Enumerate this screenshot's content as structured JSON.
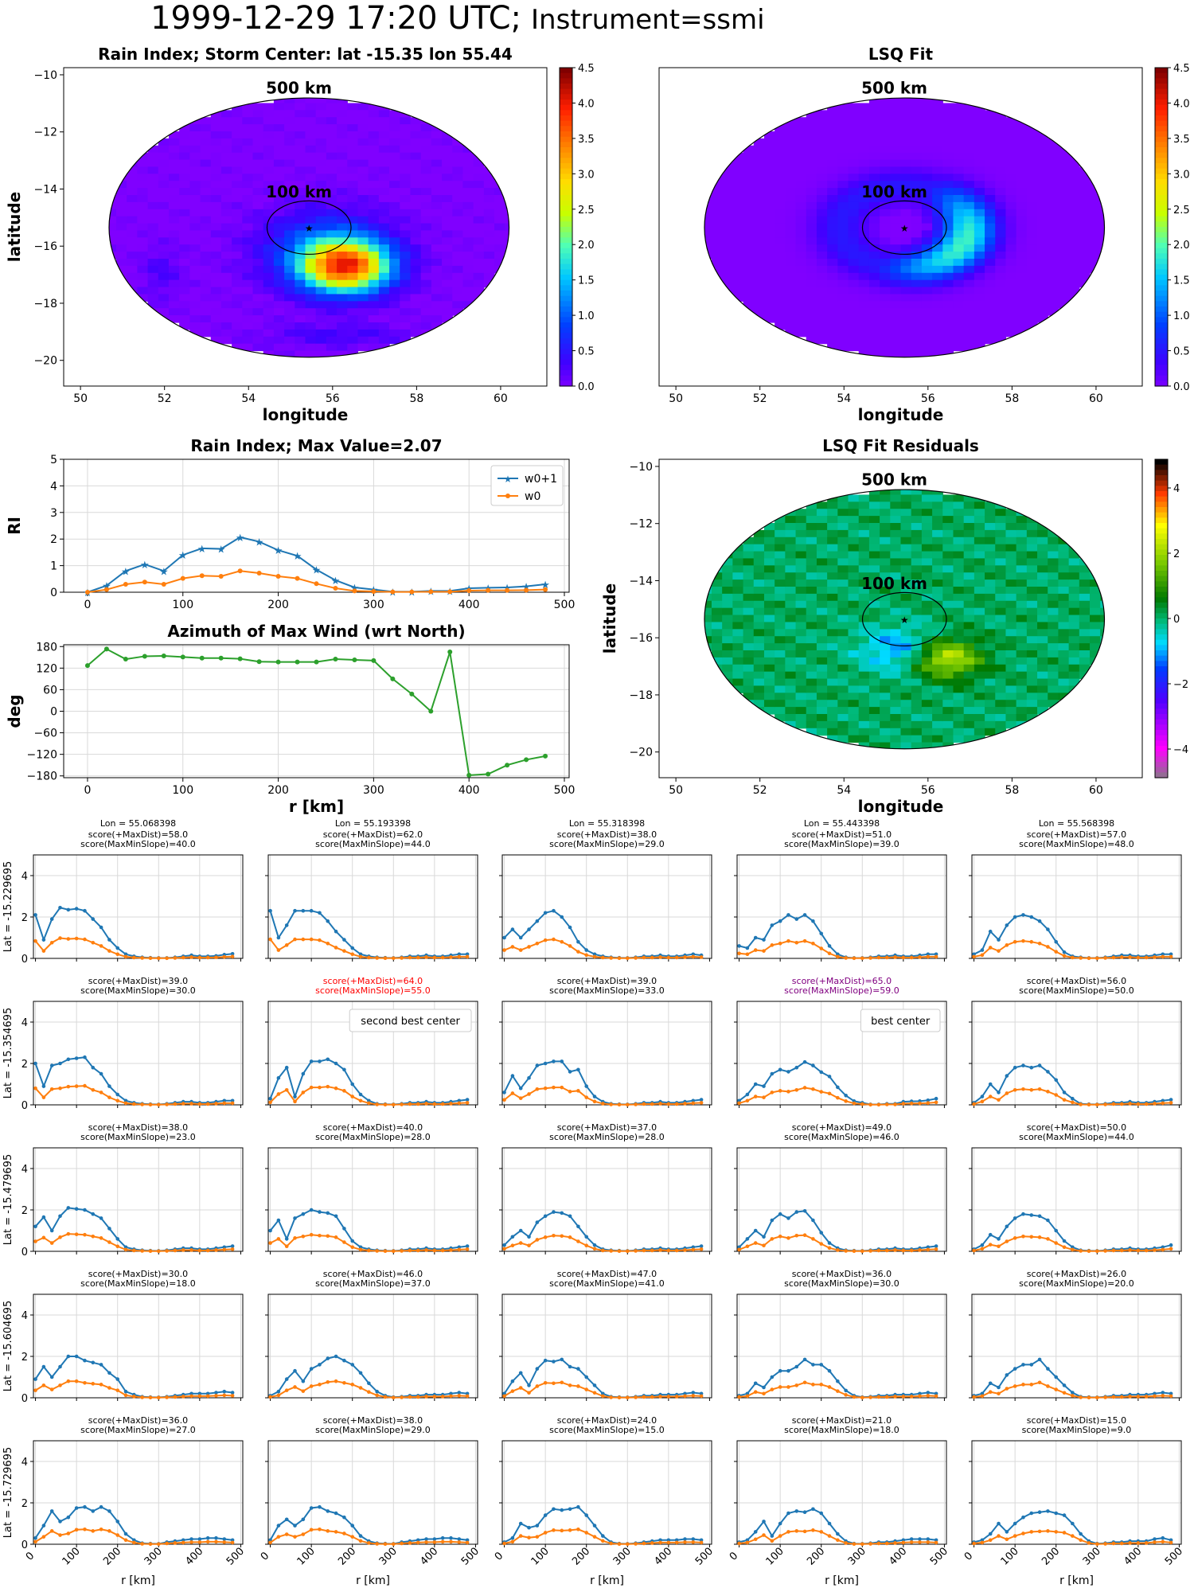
{
  "figure": {
    "title_main": "1999-12-29 17:20 UTC;",
    "title_instr": "Instrument=ssmi"
  },
  "maps": [
    {
      "title": "Rain Index; Storm Center: lat -15.35 lon 55.44",
      "xlabel": "longitude",
      "ylabel": "latitude",
      "kind": "rain",
      "xticks": [
        50,
        52,
        54,
        56,
        58,
        60
      ],
      "yticks": [
        -10,
        -12,
        -14,
        -16,
        -18,
        -20
      ],
      "ring_outer_label": "500 km",
      "ring_inner_label": "100 km",
      "colorbar_ticks": [
        "0.0",
        "0.5",
        "1.0",
        "1.5",
        "2.0",
        "2.5",
        "3.0",
        "3.5",
        "4.0",
        "4.5"
      ]
    },
    {
      "title": "LSQ Fit",
      "xlabel": "longitude",
      "ylabel": "",
      "kind": "fit",
      "xticks": [
        50,
        52,
        54,
        56,
        58,
        60
      ],
      "yticks": [],
      "ring_outer_label": "500 km",
      "ring_inner_label": "100 km",
      "colorbar_ticks": [
        "0.0",
        "0.5",
        "1.0",
        "1.5",
        "2.0",
        "2.5",
        "3.0",
        "3.5",
        "4.0",
        "4.5"
      ]
    },
    {
      "title": "LSQ Fit Residuals",
      "xlabel": "longitude",
      "ylabel": "latitude",
      "kind": "resid",
      "xticks": [
        50,
        52,
        54,
        56,
        58,
        60
      ],
      "yticks": [
        -10,
        -12,
        -14,
        -16,
        -18,
        -20
      ],
      "ring_outer_label": "500 km",
      "ring_inner_label": "100 km",
      "colorbar_ticks": [
        "4",
        "2",
        "0",
        "−2",
        "−4"
      ]
    }
  ],
  "chart_data": [
    {
      "type": "line",
      "title": "Rain Index; Max Value=2.07",
      "xlabel": "",
      "ylabel": "RI",
      "xlim": [
        -25,
        505
      ],
      "ylim": [
        0,
        5
      ],
      "xticks": [
        0,
        100,
        200,
        300,
        400,
        500
      ],
      "yticks": [
        0,
        1,
        2,
        3,
        4,
        5
      ],
      "legend": "top-right",
      "x": [
        0,
        20,
        40,
        60,
        80,
        100,
        120,
        140,
        160,
        180,
        200,
        220,
        240,
        260,
        280,
        300,
        320,
        340,
        360,
        380,
        400,
        420,
        440,
        460,
        480
      ],
      "series": [
        {
          "name": "w0+1",
          "color": "#1f77b4",
          "marker": "star",
          "values": [
            0.0,
            0.25,
            0.8,
            1.05,
            0.8,
            1.4,
            1.65,
            1.63,
            2.07,
            1.9,
            1.58,
            1.37,
            0.85,
            0.45,
            0.18,
            0.1,
            0.02,
            0.02,
            0.05,
            0.05,
            0.15,
            0.17,
            0.18,
            0.22,
            0.3
          ]
        },
        {
          "name": "w0",
          "color": "#ff7f0e",
          "marker": "dot",
          "values": [
            0.0,
            0.1,
            0.3,
            0.38,
            0.3,
            0.52,
            0.62,
            0.6,
            0.8,
            0.72,
            0.6,
            0.52,
            0.32,
            0.15,
            0.05,
            0.03,
            0.01,
            0.01,
            0.02,
            0.02,
            0.06,
            0.07,
            0.07,
            0.08,
            0.1
          ]
        }
      ]
    },
    {
      "type": "line",
      "title": "Azimuth of Max Wind (wrt North)",
      "xlabel": "r [km]",
      "ylabel": "deg",
      "xlim": [
        -25,
        505
      ],
      "ylim": [
        -185,
        185
      ],
      "xticks": [
        0,
        100,
        200,
        300,
        400,
        500
      ],
      "yticks": [
        180,
        120,
        60,
        0,
        -60,
        -120,
        -180
      ],
      "x": [
        0,
        20,
        40,
        60,
        80,
        100,
        120,
        140,
        160,
        180,
        200,
        220,
        240,
        260,
        280,
        300,
        320,
        340,
        360,
        380,
        400,
        420,
        440,
        460,
        480
      ],
      "series": [
        {
          "name": "",
          "color": "#2ca02c",
          "marker": "dot",
          "values": [
            127,
            173,
            145,
            153,
            154,
            151,
            148,
            148,
            146,
            138,
            137,
            137,
            137,
            145,
            143,
            141,
            90,
            48,
            0,
            165,
            -178,
            -175,
            -150,
            -135,
            -125
          ]
        }
      ]
    },
    {
      "type": "line",
      "title": "Rain index profiles grid",
      "xlabel": "r [km]",
      "xlim": [
        -5,
        505
      ],
      "ylim": [
        0,
        5
      ],
      "xticks": [
        0,
        100,
        200,
        300,
        400,
        500
      ],
      "yticks": [
        0,
        2,
        4
      ],
      "x": [
        0,
        20,
        40,
        60,
        80,
        100,
        120,
        140,
        160,
        180,
        200,
        220,
        240,
        260,
        280,
        300,
        320,
        340,
        360,
        380,
        400,
        420,
        440,
        460,
        480
      ],
      "columns": [
        "Lon = 55.068398",
        "Lon = 55.193398",
        "Lon = 55.318398",
        "Lon = 55.443398",
        "Lon = 55.568398"
      ],
      "rows": [
        "Lat = -15.229695",
        "Lat = -15.354695",
        "Lat = -15.479695",
        "Lat = -15.604695",
        "Lat = -15.729695"
      ],
      "scores": [
        [
          [
            "58.0",
            "40.0"
          ],
          [
            "62.0",
            "44.0"
          ],
          [
            "38.0",
            "29.0"
          ],
          [
            "51.0",
            "39.0"
          ],
          [
            "57.0",
            "48.0"
          ]
        ],
        [
          [
            "39.0",
            "30.0"
          ],
          [
            "64.0",
            "55.0"
          ],
          [
            "39.0",
            "33.0"
          ],
          [
            "65.0",
            "59.0"
          ],
          [
            "56.0",
            "50.0"
          ]
        ],
        [
          [
            "38.0",
            "23.0"
          ],
          [
            "40.0",
            "28.0"
          ],
          [
            "37.0",
            "28.0"
          ],
          [
            "49.0",
            "46.0"
          ],
          [
            "50.0",
            "44.0"
          ]
        ],
        [
          [
            "30.0",
            "18.0"
          ],
          [
            "46.0",
            "37.0"
          ],
          [
            "47.0",
            "41.0"
          ],
          [
            "36.0",
            "30.0"
          ],
          [
            "26.0",
            "20.0"
          ]
        ],
        [
          [
            "36.0",
            "27.0"
          ],
          [
            "38.0",
            "29.0"
          ],
          [
            "24.0",
            "15.0"
          ],
          [
            "21.0",
            "18.0"
          ],
          [
            "15.0",
            "9.0"
          ]
        ]
      ],
      "score_labels": [
        "score(+MaxDist)=",
        "score(MaxMinSlope)="
      ],
      "highlights": [
        {
          "row": 1,
          "col": 1,
          "color": "#ff0000",
          "label": "second best center"
        },
        {
          "row": 1,
          "col": 3,
          "color": "#800080",
          "label": "best center"
        }
      ],
      "profiles": [
        [
          [
            2.1,
            0.9,
            1.9,
            2.45,
            2.35,
            2.4,
            2.3,
            1.9,
            1.5,
            0.9,
            0.5,
            0.2,
            0.1,
            0.05,
            0.03,
            0.02,
            0.02,
            0.05,
            0.1,
            0.15,
            0.1,
            0.1,
            0.12,
            0.18,
            0.22
          ],
          [
            2.3,
            1.0,
            1.6,
            2.3,
            2.3,
            2.3,
            2.2,
            1.8,
            1.3,
            0.9,
            0.5,
            0.2,
            0.1,
            0.05,
            0.03,
            0.02,
            0.05,
            0.1,
            0.1,
            0.15,
            0.1,
            0.1,
            0.15,
            0.2,
            0.2
          ],
          [
            1.0,
            1.4,
            1.0,
            1.4,
            1.8,
            2.2,
            2.3,
            2.0,
            1.5,
            0.8,
            0.4,
            0.2,
            0.1,
            0.05,
            0.03,
            0.02,
            0.05,
            0.1,
            0.1,
            0.15,
            0.1,
            0.1,
            0.15,
            0.2,
            0.15
          ],
          [
            0.6,
            0.5,
            1.0,
            0.9,
            1.6,
            1.8,
            2.1,
            1.9,
            2.1,
            1.8,
            1.2,
            0.6,
            0.2,
            0.05,
            0.02,
            0.02,
            0.05,
            0.1,
            0.1,
            0.15,
            0.1,
            0.1,
            0.15,
            0.2,
            0.2
          ],
          [
            0.2,
            0.4,
            1.3,
            0.9,
            1.6,
            2.0,
            2.1,
            2.0,
            1.8,
            1.4,
            0.8,
            0.3,
            0.1,
            0.05,
            0.02,
            0.02,
            0.05,
            0.1,
            0.15,
            0.15,
            0.1,
            0.1,
            0.15,
            0.2,
            0.2
          ]
        ],
        [
          [
            2.0,
            0.9,
            1.9,
            2.0,
            2.2,
            2.25,
            2.3,
            1.8,
            1.5,
            0.9,
            0.5,
            0.2,
            0.1,
            0.05,
            0.03,
            0.02,
            0.05,
            0.1,
            0.15,
            0.15,
            0.1,
            0.1,
            0.15,
            0.2,
            0.2
          ],
          [
            0.3,
            1.3,
            1.8,
            0.4,
            1.5,
            2.1,
            2.1,
            2.2,
            2.0,
            1.7,
            1.0,
            0.5,
            0.2,
            0.05,
            0.03,
            0.02,
            0.05,
            0.1,
            0.1,
            0.15,
            0.1,
            0.1,
            0.15,
            0.2,
            0.25
          ],
          [
            0.6,
            1.4,
            0.8,
            1.3,
            1.9,
            2.0,
            2.1,
            2.1,
            1.6,
            1.7,
            0.9,
            0.4,
            0.15,
            0.05,
            0.03,
            0.02,
            0.05,
            0.1,
            0.1,
            0.15,
            0.1,
            0.1,
            0.15,
            0.2,
            0.25
          ],
          [
            0.2,
            0.5,
            1.0,
            0.9,
            1.5,
            1.7,
            1.6,
            1.8,
            2.07,
            1.9,
            1.58,
            1.37,
            0.85,
            0.45,
            0.18,
            0.1,
            0.02,
            0.02,
            0.05,
            0.05,
            0.15,
            0.17,
            0.18,
            0.22,
            0.3
          ],
          [
            0.1,
            0.4,
            1.0,
            0.6,
            1.4,
            1.8,
            1.9,
            1.8,
            1.9,
            1.6,
            1.2,
            0.6,
            0.3,
            0.05,
            0.03,
            0.02,
            0.05,
            0.1,
            0.1,
            0.15,
            0.1,
            0.1,
            0.15,
            0.2,
            0.25
          ]
        ],
        [
          [
            1.2,
            1.65,
            1.0,
            1.7,
            2.1,
            2.05,
            2.0,
            1.8,
            1.6,
            1.1,
            0.6,
            0.2,
            0.1,
            0.05,
            0.03,
            0.02,
            0.05,
            0.1,
            0.15,
            0.15,
            0.1,
            0.1,
            0.15,
            0.2,
            0.25
          ],
          [
            1.0,
            1.5,
            0.6,
            1.6,
            1.8,
            2.0,
            1.9,
            1.85,
            1.7,
            1.1,
            0.5,
            0.2,
            0.1,
            0.05,
            0.03,
            0.02,
            0.05,
            0.1,
            0.1,
            0.15,
            0.1,
            0.1,
            0.15,
            0.2,
            0.25
          ],
          [
            0.3,
            0.7,
            1.0,
            0.7,
            1.4,
            1.7,
            1.9,
            1.85,
            1.7,
            1.2,
            0.7,
            0.3,
            0.1,
            0.05,
            0.03,
            0.02,
            0.05,
            0.1,
            0.1,
            0.15,
            0.1,
            0.1,
            0.15,
            0.2,
            0.25
          ],
          [
            0.2,
            0.6,
            1.0,
            0.7,
            1.5,
            1.8,
            1.6,
            1.9,
            1.95,
            1.5,
            0.9,
            0.4,
            0.15,
            0.05,
            0.03,
            0.02,
            0.05,
            0.1,
            0.1,
            0.15,
            0.1,
            0.1,
            0.15,
            0.2,
            0.25
          ],
          [
            0.1,
            0.3,
            0.8,
            0.6,
            1.2,
            1.6,
            1.8,
            1.75,
            1.7,
            1.5,
            1.0,
            0.5,
            0.2,
            0.05,
            0.03,
            0.02,
            0.05,
            0.1,
            0.1,
            0.15,
            0.1,
            0.1,
            0.15,
            0.2,
            0.3
          ]
        ],
        [
          [
            0.9,
            1.5,
            1.0,
            1.5,
            2.0,
            2.0,
            1.8,
            1.7,
            1.6,
            1.2,
            0.9,
            0.3,
            0.15,
            0.05,
            0.03,
            0.02,
            0.05,
            0.1,
            0.15,
            0.2,
            0.2,
            0.2,
            0.25,
            0.3,
            0.25
          ],
          [
            0.1,
            0.3,
            0.9,
            1.3,
            0.8,
            1.4,
            1.6,
            1.9,
            2.0,
            1.8,
            1.6,
            1.2,
            0.7,
            0.3,
            0.1,
            0.03,
            0.05,
            0.1,
            0.1,
            0.15,
            0.15,
            0.15,
            0.2,
            0.25,
            0.2
          ],
          [
            0.2,
            0.8,
            1.2,
            0.6,
            1.4,
            1.8,
            1.75,
            1.85,
            1.5,
            1.4,
            1.0,
            0.6,
            0.2,
            0.05,
            0.03,
            0.02,
            0.05,
            0.1,
            0.1,
            0.15,
            0.15,
            0.15,
            0.2,
            0.25,
            0.2
          ],
          [
            0.1,
            0.2,
            0.7,
            0.5,
            1.0,
            1.3,
            1.3,
            1.5,
            1.85,
            1.6,
            1.6,
            1.3,
            0.8,
            0.35,
            0.1,
            0.03,
            0.05,
            0.1,
            0.1,
            0.15,
            0.15,
            0.15,
            0.2,
            0.25,
            0.2
          ],
          [
            0.1,
            0.2,
            0.7,
            0.5,
            1.1,
            1.4,
            1.6,
            1.6,
            1.85,
            1.4,
            1.0,
            0.6,
            0.25,
            0.05,
            0.03,
            0.02,
            0.05,
            0.1,
            0.1,
            0.15,
            0.15,
            0.15,
            0.2,
            0.25,
            0.2
          ]
        ],
        [
          [
            0.3,
            0.9,
            1.6,
            1.1,
            1.3,
            1.75,
            1.8,
            1.6,
            1.8,
            1.6,
            1.1,
            0.5,
            0.2,
            0.05,
            0.03,
            0.02,
            0.1,
            0.15,
            0.2,
            0.25,
            0.25,
            0.3,
            0.3,
            0.25,
            0.2
          ],
          [
            0.2,
            0.9,
            1.2,
            0.9,
            1.2,
            1.75,
            1.8,
            1.6,
            1.5,
            1.3,
            0.9,
            0.4,
            0.15,
            0.05,
            0.03,
            0.02,
            0.1,
            0.15,
            0.2,
            0.25,
            0.25,
            0.3,
            0.3,
            0.25,
            0.2
          ],
          [
            0.1,
            0.3,
            1.0,
            0.8,
            0.9,
            1.4,
            1.7,
            1.65,
            1.7,
            1.8,
            1.4,
            0.9,
            0.4,
            0.1,
            0.03,
            0.02,
            0.05,
            0.1,
            0.15,
            0.2,
            0.2,
            0.2,
            0.25,
            0.25,
            0.2
          ],
          [
            0.1,
            0.2,
            0.6,
            1.1,
            0.4,
            1.0,
            1.5,
            1.6,
            1.55,
            1.7,
            1.5,
            1.0,
            0.5,
            0.15,
            0.03,
            0.02,
            0.05,
            0.1,
            0.1,
            0.15,
            0.2,
            0.25,
            0.25,
            0.25,
            0.2
          ],
          [
            0.1,
            0.2,
            0.5,
            1.0,
            0.6,
            1.0,
            1.3,
            1.5,
            1.55,
            1.6,
            1.5,
            1.4,
            1.0,
            0.5,
            0.15,
            0.03,
            0.05,
            0.1,
            0.1,
            0.15,
            0.15,
            0.15,
            0.25,
            0.3,
            0.2
          ]
        ]
      ]
    }
  ]
}
